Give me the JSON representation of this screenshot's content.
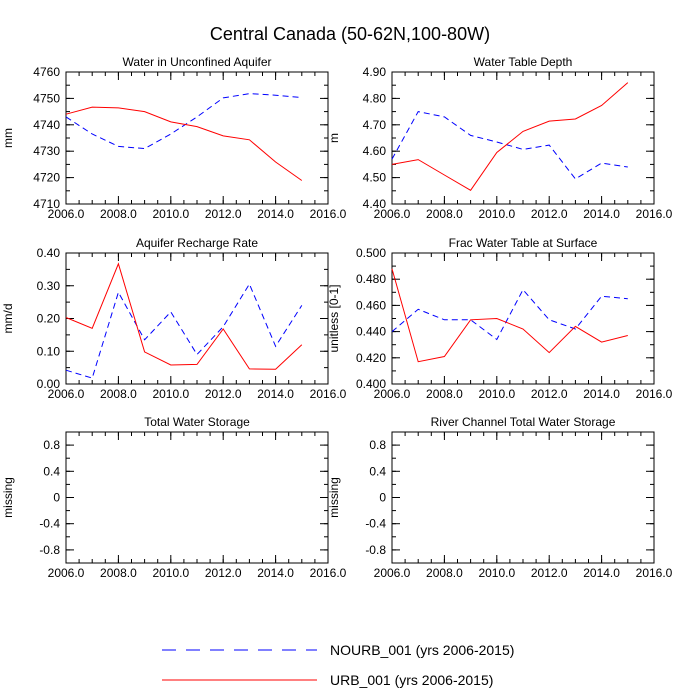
{
  "title": "Central Canada (50-62N,100-80W)",
  "legend": [
    {
      "name": "NOURB_001 (yrs 2006-2015)",
      "color": "#0000ff",
      "dash": true
    },
    {
      "name": "URB_001 (yrs 2006-2015)",
      "color": "#ff0000",
      "dash": false
    }
  ],
  "chart_data": [
    {
      "type": "line",
      "title": "Water in Unconfined Aquifer",
      "ylabel": "mm",
      "xlim": [
        2006,
        2016
      ],
      "xticks": [
        2006,
        2008,
        2010,
        2012,
        2014,
        2016
      ],
      "xticklabels": [
        "2006.0",
        "2008.0",
        "2010.0",
        "2012.0",
        "2014.0",
        "2016.0"
      ],
      "ylim": [
        4710,
        4760
      ],
      "yticks": [
        4710,
        4720,
        4730,
        4740,
        4750,
        4760
      ],
      "yticklabels": [
        "4710",
        "4720",
        "4730",
        "4740",
        "4750",
        "4760"
      ],
      "yminor": 5,
      "x": [
        2006,
        2007,
        2008,
        2009,
        2010,
        2011,
        2012,
        2013,
        2014,
        2015
      ],
      "series": [
        {
          "name": "NOURB_001 (yrs 2006-2015)",
          "values": [
            4743,
            4736.5,
            4731.8,
            4731,
            4736.5,
            4743,
            4750.2,
            4751.8,
            4751.2,
            4750.3
          ]
        },
        {
          "name": "URB_001 (yrs 2006-2015)",
          "values": [
            4744,
            4746.7,
            4746.4,
            4745,
            4741.1,
            4739.3,
            4735.8,
            4734.3,
            4725.9,
            4718.9
          ]
        }
      ]
    },
    {
      "type": "line",
      "title": "Water Table Depth",
      "ylabel": "m",
      "xlim": [
        2006,
        2016
      ],
      "xticks": [
        2006,
        2008,
        2010,
        2012,
        2014,
        2016
      ],
      "xticklabels": [
        "2006.0",
        "2008.0",
        "2010.0",
        "2012.0",
        "2014.0",
        "2016.0"
      ],
      "ylim": [
        4.4,
        4.9
      ],
      "yticks": [
        4.4,
        4.5,
        4.6,
        4.7,
        4.8,
        4.9
      ],
      "yticklabels": [
        "4.40",
        "4.50",
        "4.60",
        "4.70",
        "4.80",
        "4.90"
      ],
      "yminor": 0.05,
      "x": [
        2006,
        2007,
        2008,
        2009,
        2010,
        2011,
        2012,
        2013,
        2014,
        2015
      ],
      "series": [
        {
          "name": "NOURB_001 (yrs 2006-2015)",
          "values": [
            4.57,
            4.75,
            4.73,
            4.66,
            4.635,
            4.607,
            4.623,
            4.495,
            4.555,
            4.54
          ]
        },
        {
          "name": "URB_001 (yrs 2006-2015)",
          "values": [
            4.55,
            4.568,
            4.51,
            4.452,
            4.595,
            4.675,
            4.714,
            4.722,
            4.773,
            4.86
          ]
        }
      ]
    },
    {
      "type": "line",
      "title": "Aquifer Recharge Rate",
      "ylabel": "mm/d",
      "xlim": [
        2006,
        2016
      ],
      "xticks": [
        2006,
        2008,
        2010,
        2012,
        2014,
        2016
      ],
      "xticklabels": [
        "2006.0",
        "2008.0",
        "2010.0",
        "2012.0",
        "2014.0",
        "2016.0"
      ],
      "ylim": [
        0,
        0.4
      ],
      "yticks": [
        0,
        0.1,
        0.2,
        0.3,
        0.4
      ],
      "yticklabels": [
        "0.00",
        "0.10",
        "0.20",
        "0.30",
        "0.40"
      ],
      "yminor": 0.05,
      "x": [
        2006,
        2007,
        2008,
        2009,
        2010,
        2011,
        2012,
        2013,
        2014,
        2015
      ],
      "series": [
        {
          "name": "NOURB_001 (yrs 2006-2015)",
          "values": [
            0.042,
            0.018,
            0.28,
            0.135,
            0.22,
            0.09,
            0.175,
            0.305,
            0.115,
            0.24
          ]
        },
        {
          "name": "URB_001 (yrs 2006-2015)",
          "values": [
            0.203,
            0.17,
            0.367,
            0.098,
            0.058,
            0.06,
            0.168,
            0.046,
            0.045,
            0.12
          ]
        }
      ]
    },
    {
      "type": "line",
      "title": "Frac Water Table at Surface",
      "ylabel": "unitless [0-1]",
      "xlim": [
        2006,
        2016
      ],
      "xticks": [
        2006,
        2008,
        2010,
        2012,
        2014,
        2016
      ],
      "xticklabels": [
        "2006.0",
        "2008.0",
        "2010.0",
        "2012.0",
        "2014.0",
        "2016.0"
      ],
      "ylim": [
        0.4,
        0.5
      ],
      "yticks": [
        0.4,
        0.42,
        0.44,
        0.46,
        0.48,
        0.5
      ],
      "yticklabels": [
        "0.400",
        "0.420",
        "0.440",
        "0.460",
        "0.480",
        "0.500"
      ],
      "yminor": 0.01,
      "x": [
        2006,
        2007,
        2008,
        2009,
        2010,
        2011,
        2012,
        2013,
        2014,
        2015
      ],
      "series": [
        {
          "name": "NOURB_001 (yrs 2006-2015)",
          "values": [
            0.44,
            0.457,
            0.449,
            0.449,
            0.434,
            0.472,
            0.449,
            0.442,
            0.467,
            0.465
          ]
        },
        {
          "name": "URB_001 (yrs 2006-2015)",
          "values": [
            0.488,
            0.417,
            0.421,
            0.449,
            0.45,
            0.442,
            0.424,
            0.444,
            0.432,
            0.437
          ]
        }
      ]
    },
    {
      "type": "line",
      "title": "Total Water Storage",
      "ylabel": "missing",
      "xlim": [
        2006,
        2016
      ],
      "xticks": [
        2006,
        2008,
        2010,
        2012,
        2014,
        2016
      ],
      "xticklabels": [
        "2006.0",
        "2008.0",
        "2010.0",
        "2012.0",
        "2014.0",
        "2016.0"
      ],
      "ylim": [
        -1,
        1
      ],
      "yticks": [
        -0.8,
        -0.4,
        0,
        0.4,
        0.8
      ],
      "yticklabels": [
        "-0.8",
        "-0.4",
        "0",
        "0.4",
        "0.8"
      ],
      "yminor": 0.2,
      "x": [],
      "series": []
    },
    {
      "type": "line",
      "title": "River Channel Total Water Storage",
      "ylabel": "missing",
      "xlim": [
        2006,
        2016
      ],
      "xticks": [
        2006,
        2008,
        2010,
        2012,
        2014,
        2016
      ],
      "xticklabels": [
        "2006.0",
        "2008.0",
        "2010.0",
        "2012.0",
        "2014.0",
        "2016.0"
      ],
      "ylim": [
        -1,
        1
      ],
      "yticks": [
        -0.8,
        -0.4,
        0,
        0.4,
        0.8
      ],
      "yticklabels": [
        "-0.8",
        "-0.4",
        "0",
        "0.4",
        "0.8"
      ],
      "yminor": 0.2,
      "x": [],
      "series": []
    }
  ]
}
